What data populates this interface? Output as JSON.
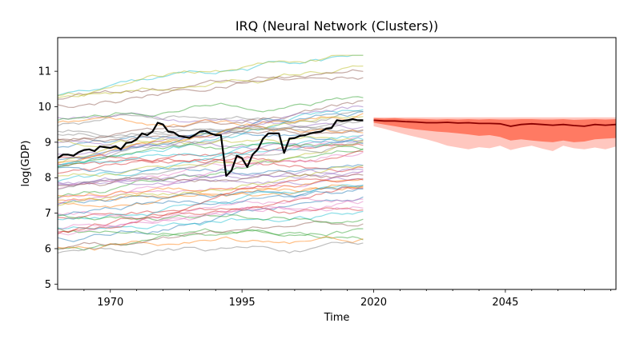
{
  "chart_data": {
    "type": "line",
    "title": "IRQ (Neural Network (Clusters))",
    "xlabel": "Time",
    "ylabel": "log(GDP)",
    "xlim": [
      1960,
      2066
    ],
    "ylim": [
      4.85,
      11.95
    ],
    "x_ticks": [
      1970,
      1995,
      2020,
      2045
    ],
    "x_tick_labels": [
      "1970",
      "1995",
      "2020",
      "2045"
    ],
    "y_ticks": [
      5,
      6,
      7,
      8,
      9,
      10,
      11
    ],
    "y_tick_labels": [
      "5",
      "6",
      "7",
      "8",
      "9",
      "10",
      "11"
    ],
    "grid": false,
    "legend": "none",
    "colors": {
      "history": "#000000",
      "forecast_median": "#8b0000",
      "band_outer": "#ffc7bf",
      "band_inner": "#ff7a63"
    },
    "history_series": {
      "name": "",
      "x": [
        1960,
        1961,
        1962,
        1963,
        1964,
        1965,
        1966,
        1967,
        1968,
        1969,
        1970,
        1971,
        1972,
        1973,
        1974,
        1975,
        1976,
        1977,
        1978,
        1979,
        1980,
        1981,
        1982,
        1983,
        1984,
        1985,
        1986,
        1987,
        1988,
        1989,
        1990,
        1991,
        1992,
        1993,
        1994,
        1995,
        1996,
        1997,
        1998,
        1999,
        2000,
        2001,
        2002,
        2003,
        2004,
        2005,
        2006,
        2007,
        2008,
        2009,
        2010,
        2011,
        2012,
        2013,
        2014,
        2015,
        2016,
        2017,
        2018
      ],
      "values": [
        8.55,
        8.65,
        8.65,
        8.62,
        8.72,
        8.78,
        8.8,
        8.75,
        8.88,
        8.86,
        8.84,
        8.89,
        8.8,
        8.98,
        9.0,
        9.08,
        9.25,
        9.2,
        9.3,
        9.55,
        9.5,
        9.3,
        9.28,
        9.18,
        9.15,
        9.12,
        9.2,
        9.3,
        9.32,
        9.25,
        9.2,
        9.2,
        8.05,
        8.2,
        8.62,
        8.55,
        8.3,
        8.65,
        8.8,
        9.1,
        9.25,
        9.25,
        9.25,
        8.7,
        9.1,
        9.12,
        9.18,
        9.2,
        9.25,
        9.28,
        9.3,
        9.38,
        9.4,
        9.62,
        9.6,
        9.62,
        9.65,
        9.62,
        9.62
      ]
    },
    "forecast": {
      "x": [
        2020,
        2022,
        2024,
        2026,
        2028,
        2030,
        2032,
        2034,
        2036,
        2038,
        2040,
        2042,
        2044,
        2046,
        2048,
        2050,
        2052,
        2054,
        2056,
        2058,
        2060,
        2062,
        2064,
        2066
      ],
      "median": [
        9.62,
        9.6,
        9.6,
        9.58,
        9.57,
        9.55,
        9.55,
        9.56,
        9.54,
        9.55,
        9.53,
        9.53,
        9.52,
        9.45,
        9.5,
        9.52,
        9.5,
        9.48,
        9.5,
        9.47,
        9.45,
        9.5,
        9.48,
        9.5
      ],
      "inner_upper": [
        9.68,
        9.67,
        9.68,
        9.66,
        9.66,
        9.65,
        9.64,
        9.65,
        9.64,
        9.65,
        9.64,
        9.65,
        9.64,
        9.64,
        9.65,
        9.65,
        9.64,
        9.64,
        9.65,
        9.63,
        9.64,
        9.65,
        9.64,
        9.65
      ],
      "inner_lower": [
        9.55,
        9.5,
        9.45,
        9.4,
        9.36,
        9.33,
        9.3,
        9.28,
        9.25,
        9.22,
        9.18,
        9.2,
        9.15,
        9.05,
        9.08,
        9.05,
        9.02,
        9.0,
        9.05,
        9.0,
        9.02,
        9.08,
        9.1,
        9.12
      ],
      "outer_upper": [
        9.7,
        9.7,
        9.7,
        9.7,
        9.7,
        9.7,
        9.7,
        9.7,
        9.7,
        9.7,
        9.7,
        9.7,
        9.7,
        9.7,
        9.7,
        9.7,
        9.7,
        9.7,
        9.7,
        9.7,
        9.7,
        9.7,
        9.7,
        9.7
      ],
      "outer_lower": [
        9.45,
        9.38,
        9.3,
        9.22,
        9.15,
        9.08,
        9.0,
        8.9,
        8.85,
        8.8,
        8.86,
        8.83,
        8.9,
        8.78,
        8.85,
        8.9,
        8.82,
        8.75,
        8.9,
        8.83,
        8.8,
        8.85,
        8.8,
        8.88
      ]
    },
    "background_series_count": 60,
    "background_series_palette": [
      "#1f77b4",
      "#ff7f0e",
      "#2ca02c",
      "#d62728",
      "#9467bd",
      "#8c564b",
      "#e377c2",
      "#7f7f7f",
      "#bcbd22",
      "#17becf"
    ]
  }
}
